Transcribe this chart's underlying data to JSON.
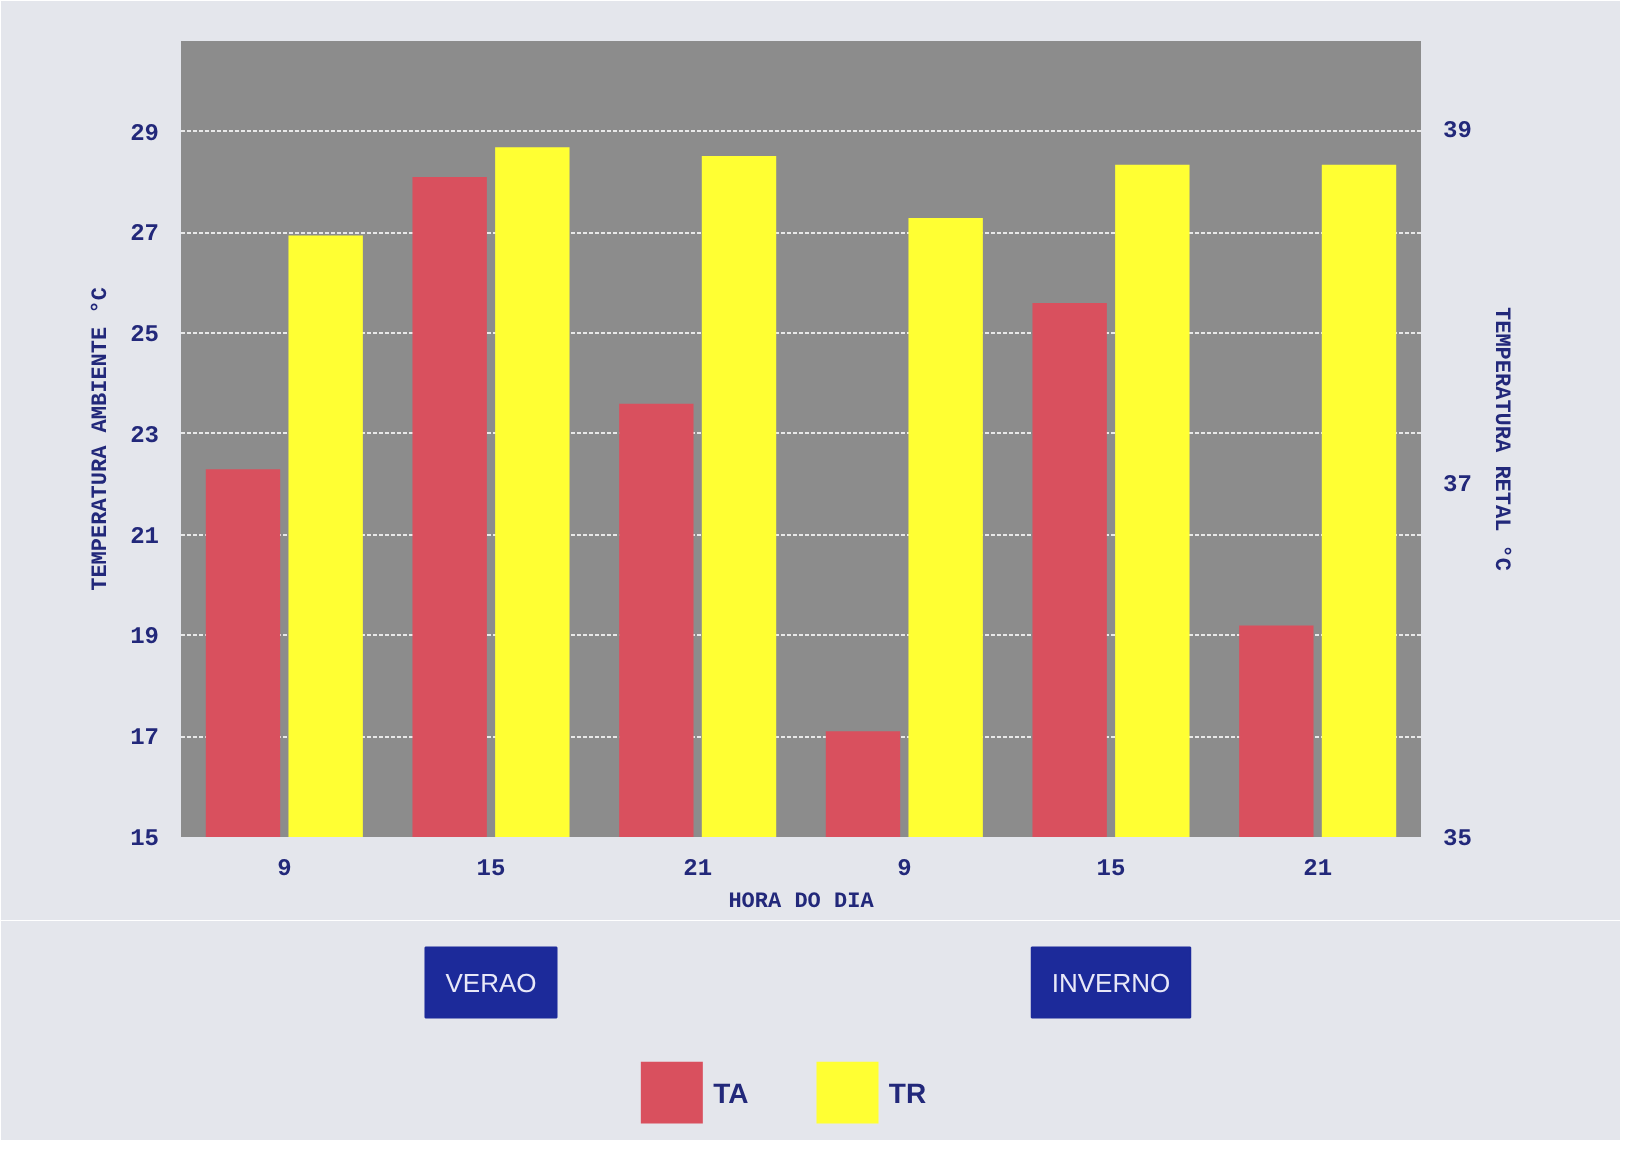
{
  "chart_data": {
    "type": "bar",
    "xlabel": "HORA DO DIA",
    "ylabel": "TEMPERATURA AMBIENTE °C",
    "y2label": "TEMPERATURA RETAL °C",
    "categories": [
      "9",
      "15",
      "21",
      "9",
      "15",
      "21"
    ],
    "series": [
      {
        "name": "TA",
        "color": "#d9505e",
        "values": [
          22.3,
          28.1,
          23.6,
          17.1,
          25.6,
          19.2
        ]
      },
      {
        "name": "TR",
        "color": "#ffff33",
        "axis": "y2",
        "values": [
          38.4,
          38.9,
          38.85,
          38.5,
          38.8,
          38.8
        ]
      }
    ],
    "ylim": [
      15,
      30.8
    ],
    "yticks": [
      15,
      17,
      19,
      21,
      23,
      25,
      27,
      29
    ],
    "y2lim": [
      35,
      39.5
    ],
    "y2ticks": [
      35,
      37,
      39
    ],
    "grid": "y",
    "legend": "bottom",
    "annotations": [
      "VERAO",
      "INVERNO"
    ]
  }
}
